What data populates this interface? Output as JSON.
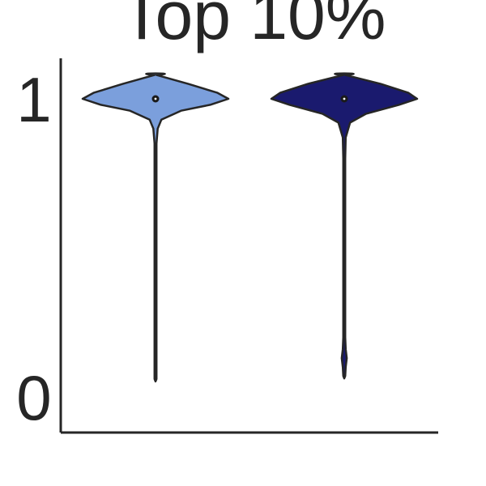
{
  "chart_data": {
    "type": "violin",
    "title": "Top 10%",
    "xlabel": "",
    "ylabel": "",
    "ylim": [
      0,
      1
    ],
    "yticks": [
      0,
      1
    ],
    "ytick_labels": [
      "0",
      "1"
    ],
    "categories": [
      "",
      ""
    ],
    "series": [
      {
        "color": "#7b9fdc",
        "min": 0.06,
        "max": 1.08,
        "median": 1.0,
        "density": [
          [
            0.06,
            0.003
          ],
          [
            0.15,
            0.006
          ],
          [
            0.3,
            0.005
          ],
          [
            0.45,
            0.005
          ],
          [
            0.6,
            0.005
          ],
          [
            0.75,
            0.006
          ],
          [
            0.85,
            0.012
          ],
          [
            0.9,
            0.03
          ],
          [
            0.93,
            0.08
          ],
          [
            0.96,
            0.35
          ],
          [
            0.98,
            0.75
          ],
          [
            1.0,
            1.0
          ],
          [
            1.02,
            0.85
          ],
          [
            1.05,
            0.45
          ],
          [
            1.08,
            0.0
          ]
        ]
      },
      {
        "color": "#1a1a6e",
        "min": 0.07,
        "max": 1.08,
        "median": 1.0,
        "density": [
          [
            0.07,
            0.0
          ],
          [
            0.1,
            0.02
          ],
          [
            0.13,
            0.035
          ],
          [
            0.16,
            0.02
          ],
          [
            0.2,
            0.005
          ],
          [
            0.35,
            0.005
          ],
          [
            0.5,
            0.005
          ],
          [
            0.65,
            0.005
          ],
          [
            0.8,
            0.007
          ],
          [
            0.87,
            0.02
          ],
          [
            0.92,
            0.08
          ],
          [
            0.95,
            0.3
          ],
          [
            0.98,
            0.75
          ],
          [
            1.0,
            1.0
          ],
          [
            1.02,
            0.88
          ],
          [
            1.05,
            0.5
          ],
          [
            1.08,
            0.0
          ]
        ]
      }
    ]
  }
}
